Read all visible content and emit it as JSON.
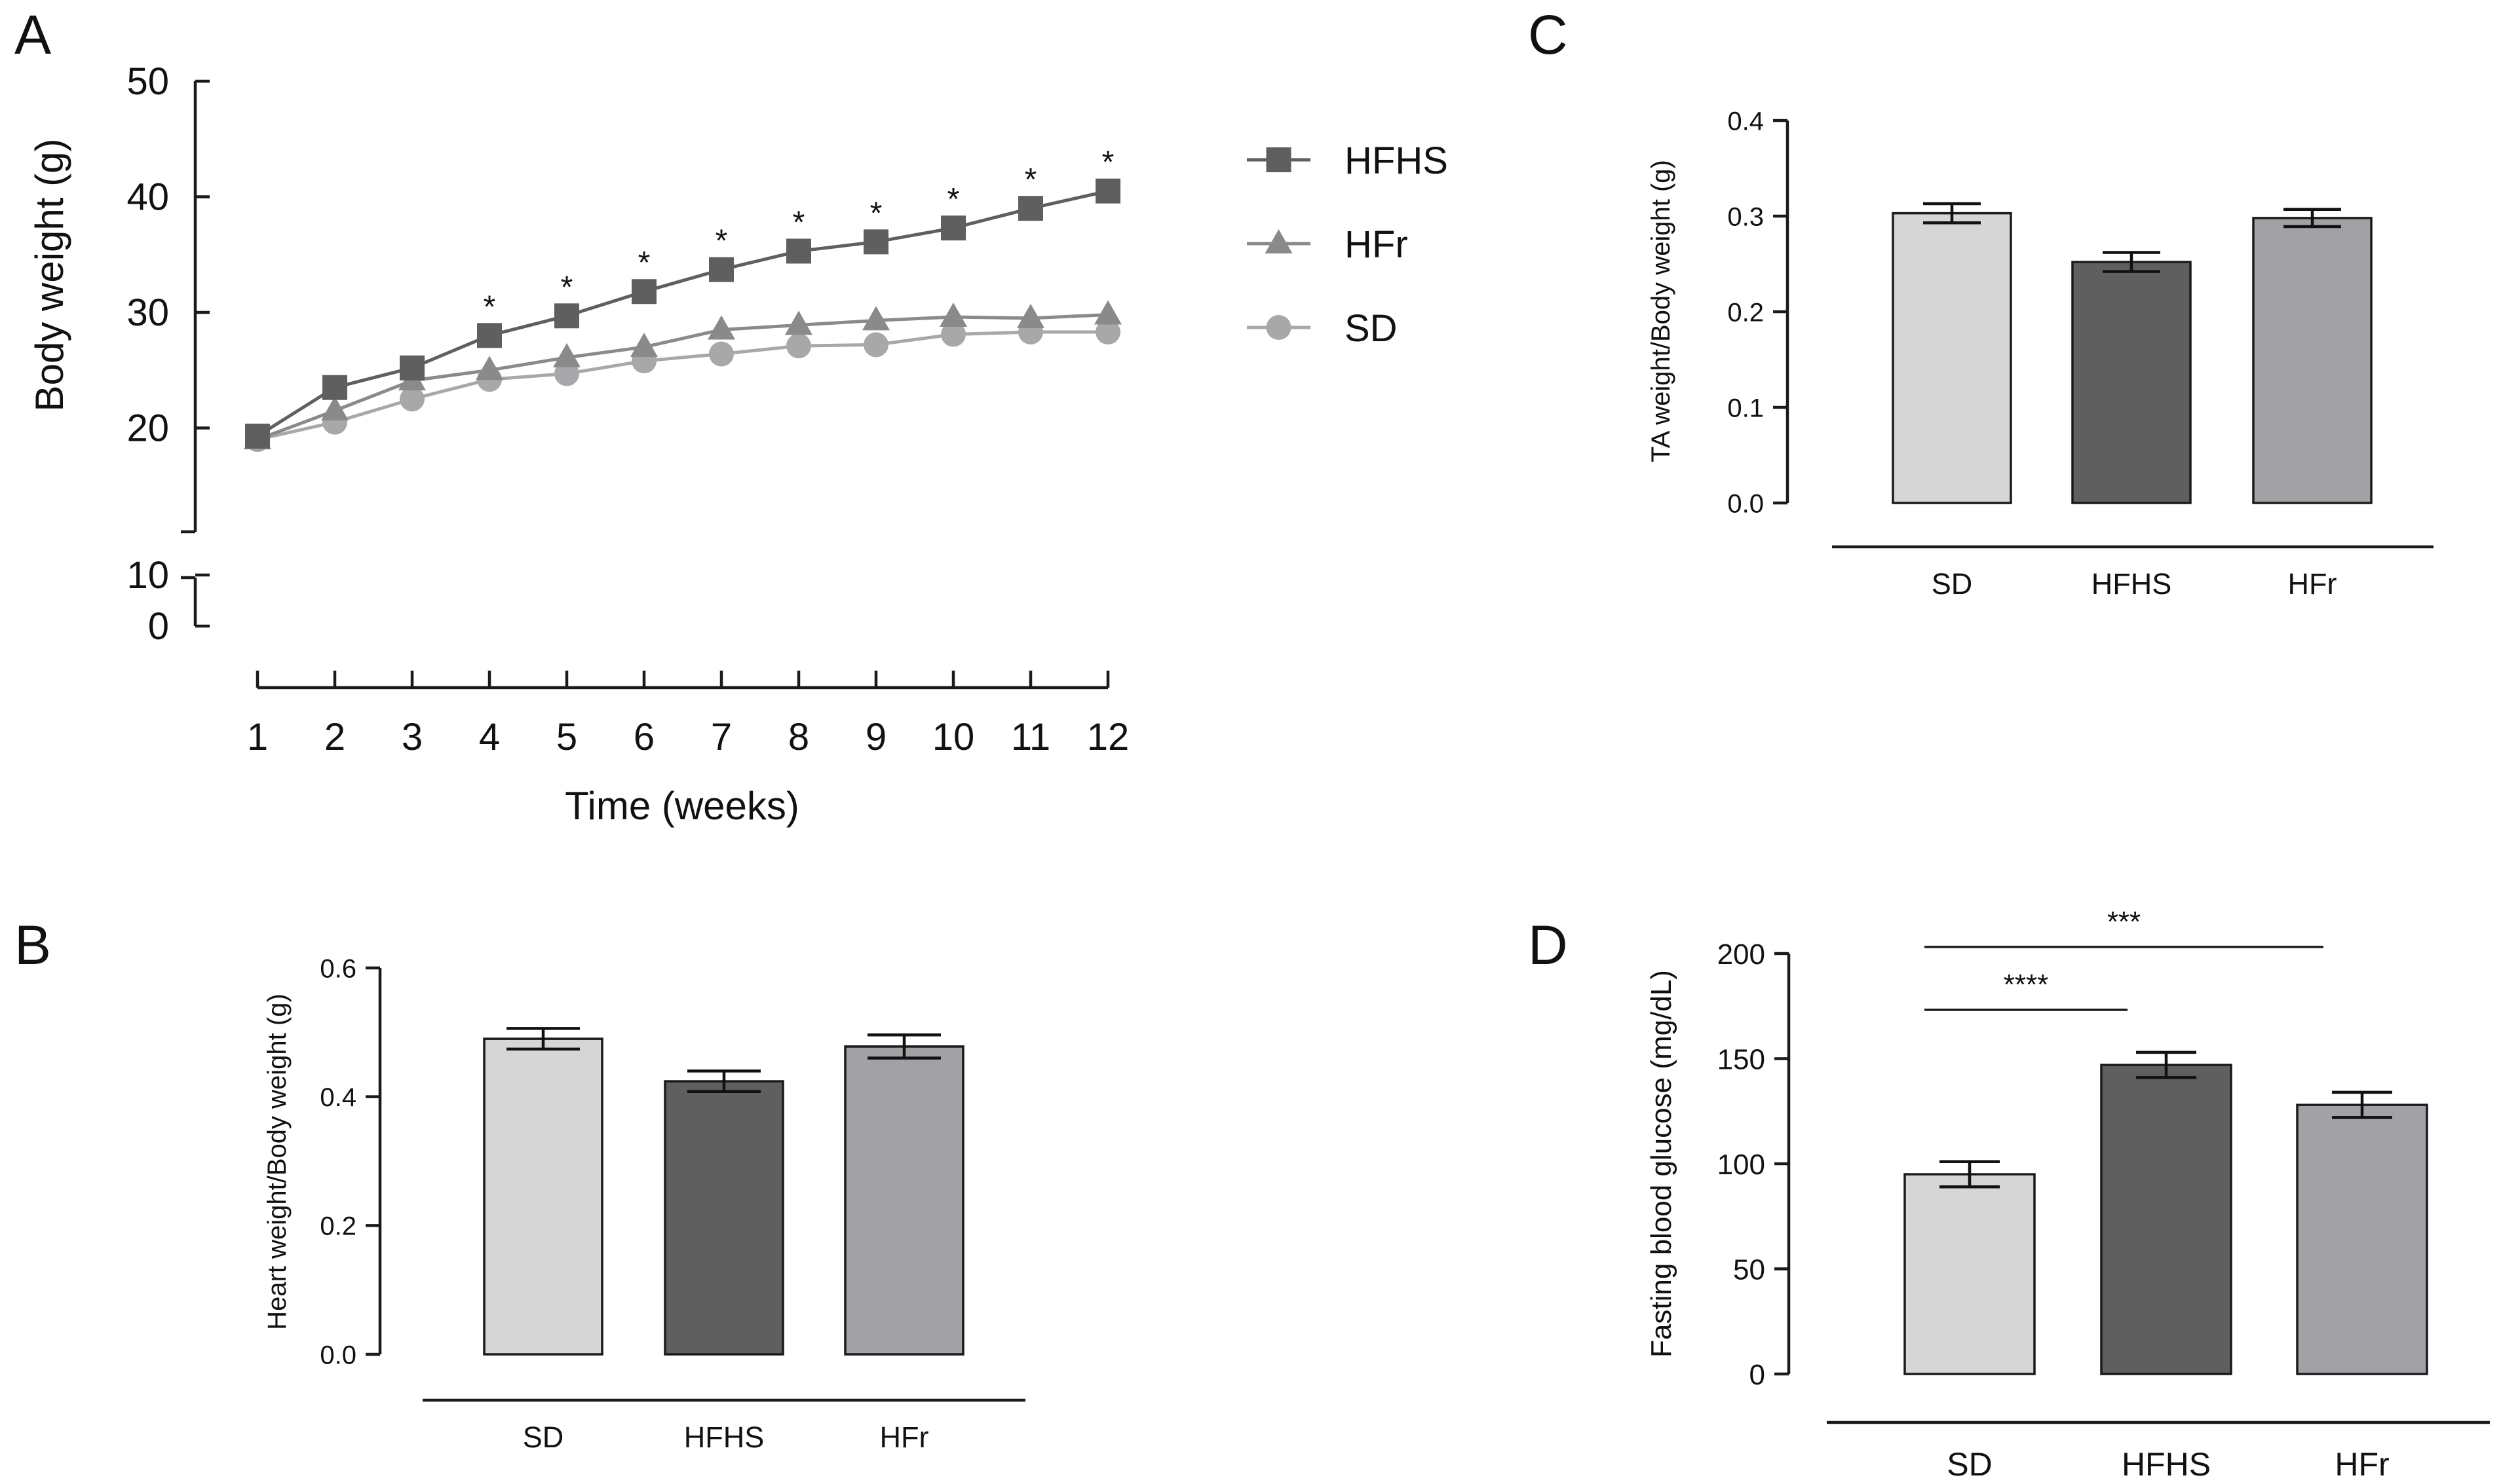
{
  "panels": {
    "a": {
      "letter": "A",
      "chart_data": {
        "type": "line",
        "ylabel": "Body weight (g)",
        "xlabel": "Time (weeks)",
        "x": [
          1,
          2,
          3,
          4,
          5,
          6,
          7,
          8,
          9,
          10,
          11,
          12
        ],
        "ylim": [
          0,
          50
        ],
        "y_ticks": [
          0,
          10,
          20,
          30,
          40,
          50
        ],
        "y_break": [
          10,
          15
        ],
        "series": [
          {
            "name": "HFHS",
            "marker": "square",
            "color": "#5f5f5f",
            "values": [
              19.3,
              23.5,
              25.2,
              28.0,
              29.7,
              31.8,
              33.7,
              35.3,
              36.1,
              37.3,
              39.0,
              40.5
            ]
          },
          {
            "name": "HFr",
            "marker": "triangle",
            "color": "#8a8a8a",
            "values": [
              19.0,
              21.5,
              24.1,
              25.0,
              26.1,
              27.0,
              28.5,
              28.9,
              29.3,
              29.6,
              29.5,
              29.8
            ]
          },
          {
            "name": "SD",
            "marker": "circle",
            "color": "#a8a8aa",
            "values": [
              19.0,
              20.5,
              22.5,
              24.2,
              24.7,
              25.8,
              26.4,
              27.1,
              27.2,
              28.1,
              28.3,
              28.3
            ]
          }
        ],
        "significance": [
          {
            "x": 4,
            "label": "*"
          },
          {
            "x": 5,
            "label": "*"
          },
          {
            "x": 6,
            "label": "*"
          },
          {
            "x": 7,
            "label": "*"
          },
          {
            "x": 8,
            "label": "*"
          },
          {
            "x": 9,
            "label": "*"
          },
          {
            "x": 10,
            "label": "*"
          },
          {
            "x": 11,
            "label": "*"
          },
          {
            "x": 12,
            "label": "*"
          }
        ],
        "legend_position": "right"
      }
    },
    "b": {
      "letter": "B",
      "chart_data": {
        "type": "bar",
        "ylabel": "Heart weight/Body weight (g)",
        "categories": [
          "SD",
          "HFHS",
          "HFr"
        ],
        "values": [
          0.49,
          0.424,
          0.478
        ],
        "errors": [
          0.016,
          0.016,
          0.018
        ],
        "colors": [
          "#d6d6d6",
          "#5f5f5f",
          "#a2a2a6"
        ],
        "ylim": [
          0,
          0.6
        ],
        "y_ticks": [
          0.0,
          0.2,
          0.4,
          0.6
        ],
        "y_tick_labels": [
          "0.0",
          "0.2",
          "0.4",
          "0.6"
        ]
      }
    },
    "c": {
      "letter": "C",
      "chart_data": {
        "type": "bar",
        "ylabel": "TA weight/Body weight (g)",
        "categories": [
          "SD",
          "HFHS",
          "HFr"
        ],
        "values": [
          0.303,
          0.252,
          0.298
        ],
        "errors": [
          0.01,
          0.01,
          0.009
        ],
        "colors": [
          "#d6d6d6",
          "#5f5f5f",
          "#a2a2a6"
        ],
        "ylim": [
          0,
          0.4
        ],
        "y_ticks": [
          0.0,
          0.1,
          0.2,
          0.3,
          0.4
        ],
        "y_tick_labels": [
          "0.0",
          "0.1",
          "0.2",
          "0.3",
          "0.4"
        ]
      }
    },
    "d": {
      "letter": "D",
      "chart_data": {
        "type": "bar",
        "ylabel": "Fasting blood glucose (mg/dL)",
        "categories": [
          "SD",
          "HFHS",
          "HFr"
        ],
        "values": [
          95,
          147,
          128
        ],
        "errors": [
          6,
          6,
          6
        ],
        "colors": [
          "#d6d6d6",
          "#5f5f5f",
          "#a2a2a6"
        ],
        "ylim": [
          0,
          200
        ],
        "y_ticks": [
          0,
          50,
          100,
          150,
          200
        ],
        "y_tick_labels": [
          "0",
          "50",
          "100",
          "150",
          "200"
        ],
        "significance": [
          {
            "from": "SD",
            "to": "HFHS",
            "label": "****"
          },
          {
            "from": "SD",
            "to": "HFr",
            "label": "***"
          }
        ]
      }
    }
  }
}
